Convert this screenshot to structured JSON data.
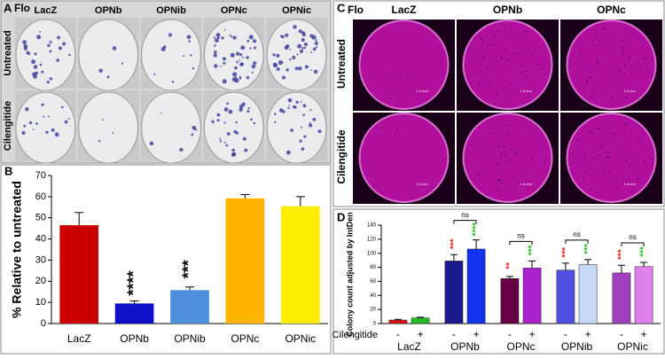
{
  "panel_a": {
    "panel_label": "A",
    "corner_label": "Flo",
    "columns": [
      "LacZ",
      "OPNb",
      "OPNib",
      "OPNc",
      "OPNic"
    ],
    "rows": [
      "Untreated",
      "Cilengitide"
    ]
  },
  "panel_c": {
    "panel_label": "C",
    "corner_label": "Flo",
    "columns": [
      "LacZ",
      "OPNb",
      "OPNc"
    ],
    "rows": [
      "Untreated",
      "Cilengitide"
    ],
    "scale_text": "1.0 mm"
  },
  "chart_data": [
    {
      "type": "bar",
      "panel_label": "B",
      "y_label": "% Relative to untreated",
      "categories": [
        "LacZ",
        "OPNb",
        "OPNib",
        "OPNc",
        "OPNic"
      ],
      "values": [
        46.5,
        9.5,
        15.8,
        59.2,
        55.5
      ],
      "errors": [
        6,
        1.2,
        1.5,
        1.8,
        4.5
      ],
      "colors": [
        "#cc0000",
        "#1010c8",
        "#4f8fdc",
        "#ffb400",
        "#ffee00"
      ],
      "annotations": [
        null,
        "****",
        "***",
        null,
        null
      ],
      "ylim": [
        0,
        70
      ],
      "yticks": [
        0,
        10,
        20,
        30,
        40,
        50,
        60,
        70
      ]
    },
    {
      "type": "grouped_bar",
      "panel_label": "D",
      "y_label": "Colony count adjusted by IntDen",
      "x_row_label": "Cilengitide",
      "categories": [
        "LacZ",
        "OPNb",
        "OPNc",
        "OPNib",
        "OPNic"
      ],
      "series": [
        {
          "name": "-",
          "values": [
            5,
            89,
            64,
            76,
            72
          ],
          "errors": [
            1,
            9,
            3,
            10,
            11
          ],
          "colors": [
            "#dd1111",
            "#1a1a8c",
            "#660044",
            "#5050e0",
            "#a040c0"
          ],
          "annotation_color": "#e02020",
          "annotations": [
            null,
            "***",
            "**",
            "***",
            "***"
          ]
        },
        {
          "name": "+",
          "values": [
            8,
            106,
            79,
            84,
            81
          ],
          "errors": [
            1,
            13,
            10,
            7,
            6
          ],
          "colors": [
            "#22bb22",
            "#1133ee",
            "#aa22cc",
            "#c8d8f8",
            "#e080ee"
          ],
          "annotation_color": "#22b822",
          "annotations": [
            null,
            "****",
            "***",
            "***",
            "***"
          ]
        }
      ],
      "brackets": [
        null,
        "ns",
        "ns",
        "ns",
        "ns"
      ],
      "ylim": [
        0,
        140
      ],
      "yticks": [
        0,
        20,
        40,
        60,
        80,
        100,
        120,
        140
      ]
    }
  ]
}
